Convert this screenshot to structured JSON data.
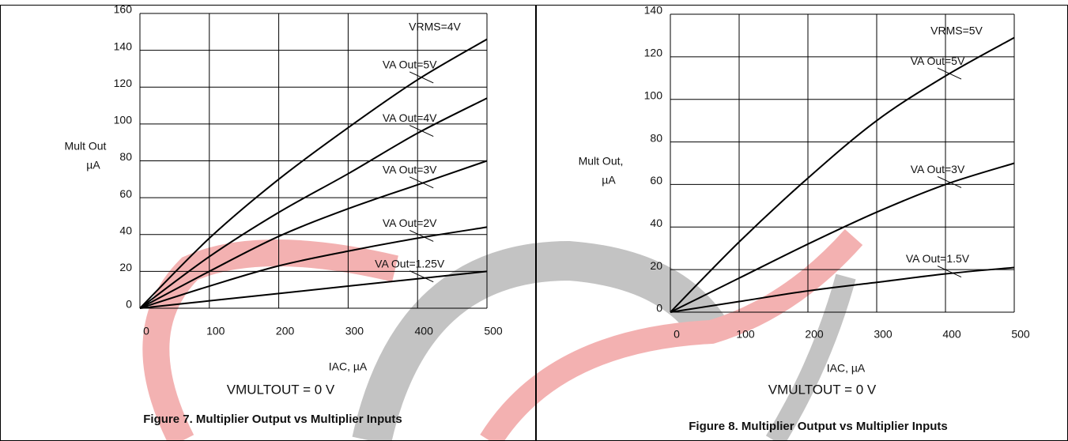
{
  "chart_data": [
    {
      "type": "line",
      "title": "Figure 7. Multiplier Output vs Multiplier Inputs",
      "subtitle": "VMULTOUT = 0 V",
      "annotation": "VRMS=4V",
      "xlabel": "IAC, µA",
      "ylabel": [
        "Mult Out",
        "µA"
      ],
      "x": [
        0,
        100,
        200,
        300,
        400,
        500
      ],
      "series": [
        {
          "name": "VA Out=5V",
          "color": "#000000",
          "values": [
            0,
            38,
            70,
            98,
            124,
            146
          ]
        },
        {
          "name": "VA Out=4V",
          "color": "#000000",
          "values": [
            0,
            28,
            52,
            73,
            95,
            114
          ]
        },
        {
          "name": "VA Out=3V",
          "color": "#000000",
          "values": [
            0,
            20,
            39,
            54,
            67,
            80
          ]
        },
        {
          "name": "VA Out=2V",
          "color": "#000000",
          "values": [
            0,
            12,
            23,
            31,
            38,
            44
          ]
        },
        {
          "name": "VA Out=1.25V",
          "color": "#000000",
          "values": [
            0,
            4,
            8,
            12,
            16,
            20
          ]
        }
      ],
      "xlim": [
        0,
        500
      ],
      "xticks": [
        0,
        100,
        200,
        300,
        400,
        500
      ],
      "ylim": [
        0,
        160
      ],
      "yticks": [
        0,
        20,
        40,
        60,
        80,
        100,
        120,
        140,
        160
      ],
      "grid": true
    },
    {
      "type": "line",
      "title": "Figure 8. Multiplier Output vs Multiplier Inputs",
      "subtitle": "VMULTOUT = 0 V",
      "annotation": "VRMS=5V",
      "xlabel": "IAC, µA",
      "ylabel": [
        "Mult Out,",
        "µA"
      ],
      "x": [
        0,
        100,
        200,
        300,
        400,
        500
      ],
      "series": [
        {
          "name": "VA Out=5V",
          "color": "#000000",
          "values": [
            0,
            33,
            63,
            90,
            111,
            129
          ]
        },
        {
          "name": "VA Out=3V",
          "color": "#000000",
          "values": [
            0,
            16,
            32,
            47,
            60,
            70
          ]
        },
        {
          "name": "VA Out=1.5V",
          "color": "#000000",
          "values": [
            0,
            5,
            10,
            14,
            18,
            21
          ]
        }
      ],
      "xlim": [
        0,
        500
      ],
      "xticks": [
        0,
        100,
        200,
        300,
        400,
        500
      ],
      "ylim": [
        0,
        140
      ],
      "yticks": [
        0,
        20,
        40,
        60,
        80,
        100,
        120,
        140
      ],
      "grid": true
    }
  ]
}
